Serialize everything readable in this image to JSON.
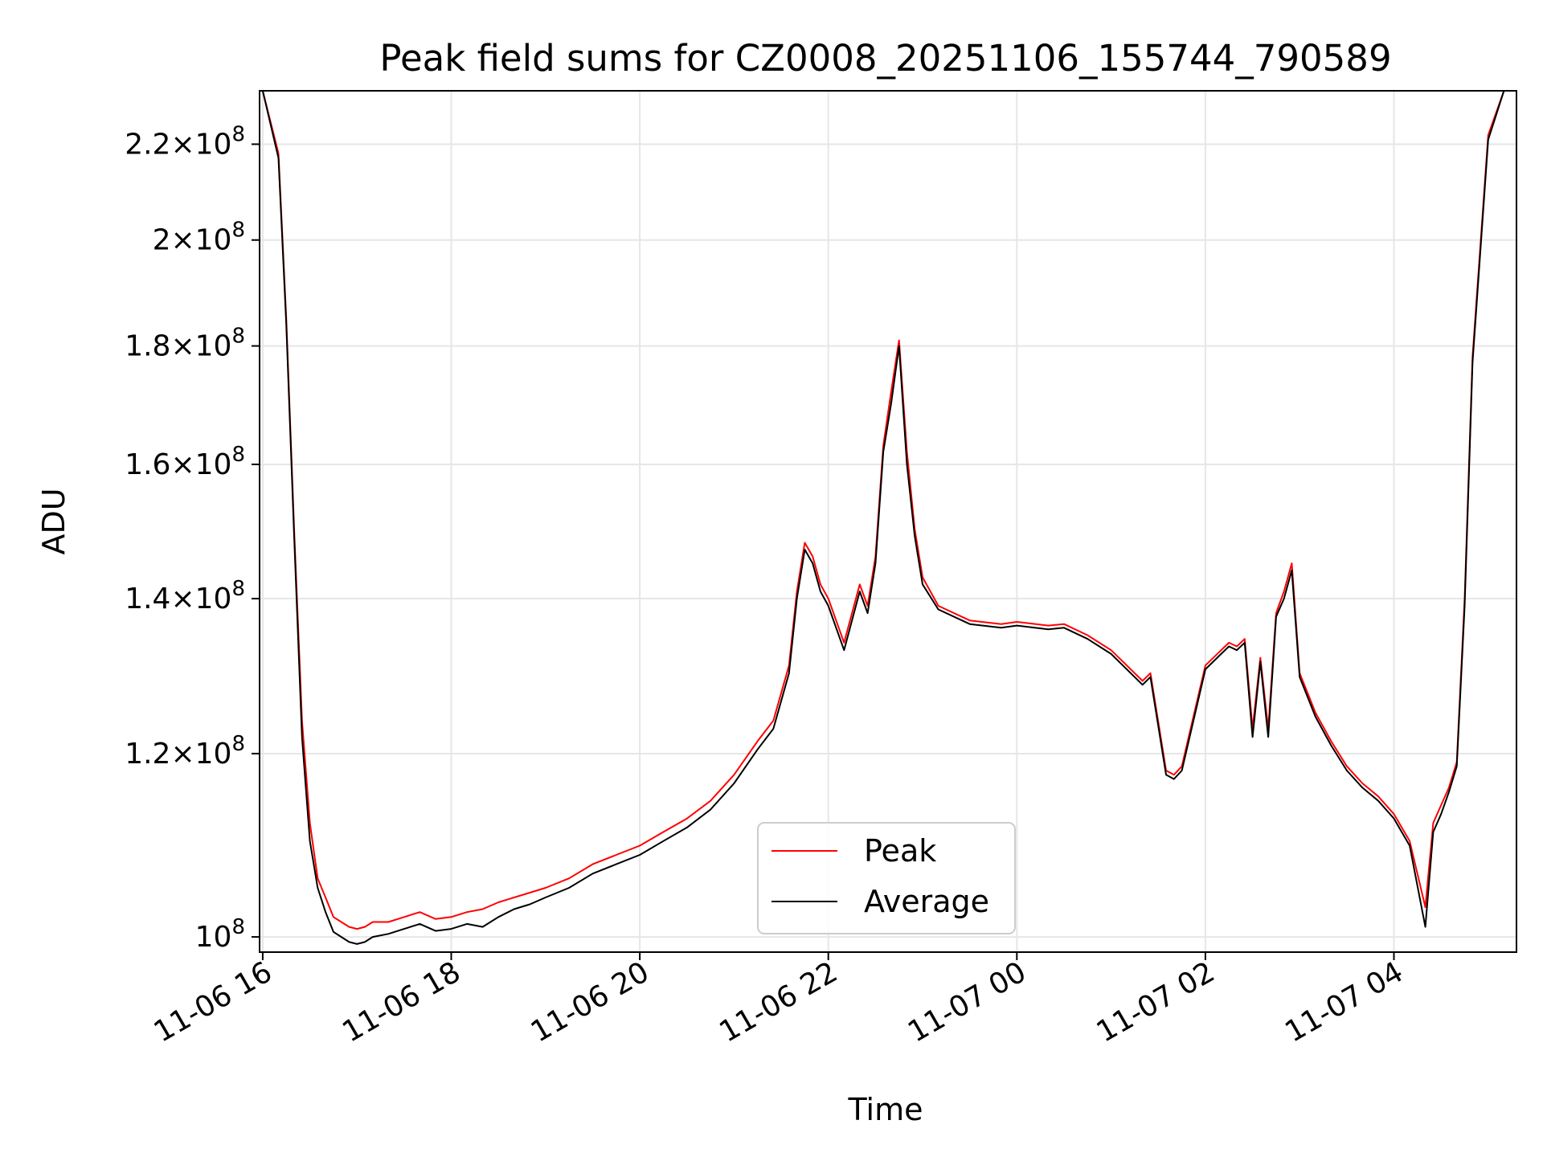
{
  "chart_data": {
    "type": "line",
    "title": "Peak field sums for CZ0008_20251106_155744_790589",
    "xlabel": "Time",
    "ylabel": "ADU",
    "yscale": "log",
    "grid": true,
    "legend_position": "bottom-center",
    "xlim": [
      "2025-11-06 15:58",
      "2025-11-07 05:18"
    ],
    "ylim": [
      98500000,
      232000000
    ],
    "x_ticks": [
      {
        "label": "11-06 16",
        "value": "2025-11-06 16:00"
      },
      {
        "label": "11-06 18",
        "value": "2025-11-06 18:00"
      },
      {
        "label": "11-06 20",
        "value": "2025-11-06 20:00"
      },
      {
        "label": "11-06 22",
        "value": "2025-11-06 22:00"
      },
      {
        "label": "11-07 00",
        "value": "2025-11-07 00:00"
      },
      {
        "label": "11-07 02",
        "value": "2025-11-07 02:00"
      },
      {
        "label": "11-07 04",
        "value": "2025-11-07 04:00"
      }
    ],
    "y_ticks": [
      {
        "value": 100000000,
        "mantissa": "",
        "exponent": "8"
      },
      {
        "value": 120000000,
        "mantissa": "1.2",
        "exponent": "8"
      },
      {
        "value": 140000000,
        "mantissa": "1.4",
        "exponent": "8"
      },
      {
        "value": 160000000,
        "mantissa": "1.6",
        "exponent": "8"
      },
      {
        "value": 180000000,
        "mantissa": "1.8",
        "exponent": "8"
      },
      {
        "value": 200000000,
        "mantissa": "2",
        "exponent": "8"
      },
      {
        "value": 220000000,
        "mantissa": "2.2",
        "exponent": "8"
      }
    ],
    "series": [
      {
        "name": "Peak",
        "color": "#ff0000",
        "x": [
          "2025-11-06 16:00",
          "2025-11-06 16:10",
          "2025-11-06 16:15",
          "2025-11-06 16:20",
          "2025-11-06 16:25",
          "2025-11-06 16:30",
          "2025-11-06 16:35",
          "2025-11-06 16:40",
          "2025-11-06 16:45",
          "2025-11-06 16:50",
          "2025-11-06 16:55",
          "2025-11-06 17:00",
          "2025-11-06 17:05",
          "2025-11-06 17:10",
          "2025-11-06 17:20",
          "2025-11-06 17:30",
          "2025-11-06 17:40",
          "2025-11-06 17:50",
          "2025-11-06 18:00",
          "2025-11-06 18:10",
          "2025-11-06 18:20",
          "2025-11-06 18:30",
          "2025-11-06 18:40",
          "2025-11-06 18:50",
          "2025-11-06 19:00",
          "2025-11-06 19:15",
          "2025-11-06 19:30",
          "2025-11-06 19:45",
          "2025-11-06 20:00",
          "2025-11-06 20:15",
          "2025-11-06 20:30",
          "2025-11-06 20:45",
          "2025-11-06 21:00",
          "2025-11-06 21:15",
          "2025-11-06 21:25",
          "2025-11-06 21:35",
          "2025-11-06 21:40",
          "2025-11-06 21:45",
          "2025-11-06 21:50",
          "2025-11-06 21:55",
          "2025-11-06 22:00",
          "2025-11-06 22:10",
          "2025-11-06 22:20",
          "2025-11-06 22:25",
          "2025-11-06 22:30",
          "2025-11-06 22:35",
          "2025-11-06 22:40",
          "2025-11-06 22:45",
          "2025-11-06 22:50",
          "2025-11-06 22:55",
          "2025-11-06 23:00",
          "2025-11-06 23:10",
          "2025-11-06 23:30",
          "2025-11-06 23:50",
          "2025-11-07 00:00",
          "2025-11-07 00:20",
          "2025-11-07 00:30",
          "2025-11-07 00:45",
          "2025-11-07 01:00",
          "2025-11-07 01:15",
          "2025-11-07 01:20",
          "2025-11-07 01:25",
          "2025-11-07 01:35",
          "2025-11-07 01:40",
          "2025-11-07 01:45",
          "2025-11-07 02:00",
          "2025-11-07 02:10",
          "2025-11-07 02:15",
          "2025-11-07 02:20",
          "2025-11-07 02:25",
          "2025-11-07 02:30",
          "2025-11-07 02:35",
          "2025-11-07 02:40",
          "2025-11-07 02:45",
          "2025-11-07 02:50",
          "2025-11-07 02:55",
          "2025-11-07 03:00",
          "2025-11-07 03:10",
          "2025-11-07 03:20",
          "2025-11-07 03:30",
          "2025-11-07 03:40",
          "2025-11-07 03:50",
          "2025-11-07 04:00",
          "2025-11-07 04:10",
          "2025-11-07 04:20",
          "2025-11-07 04:25",
          "2025-11-07 04:30",
          "2025-11-07 04:35",
          "2025-11-07 04:40",
          "2025-11-07 04:45",
          "2025-11-07 04:50",
          "2025-11-07 05:00",
          "2025-11-07 05:10",
          "2025-11-07 05:18"
        ],
        "y": [
          232000000,
          218000000,
          185000000,
          150000000,
          124000000,
          112000000,
          106000000,
          104000000,
          102000000,
          101500000,
          101000000,
          100800000,
          101000000,
          101500000,
          101500000,
          102000000,
          102500000,
          101800000,
          102000000,
          102500000,
          102800000,
          103500000,
          104000000,
          104500000,
          105000000,
          106000000,
          107500000,
          108500000,
          109500000,
          111000000,
          112500000,
          114500000,
          117500000,
          121500000,
          124000000,
          131000000,
          141000000,
          148000000,
          146000000,
          142000000,
          140000000,
          134000000,
          142000000,
          139000000,
          146000000,
          163000000,
          172000000,
          181000000,
          162000000,
          150000000,
          143000000,
          139000000,
          137000000,
          136500000,
          136800000,
          136300000,
          136500000,
          135000000,
          133000000,
          130000000,
          129000000,
          130000000,
          118000000,
          117500000,
          118500000,
          131000000,
          133000000,
          134000000,
          133500000,
          134500000,
          123000000,
          132000000,
          123000000,
          138000000,
          141000000,
          145000000,
          130000000,
          125000000,
          121500000,
          118500000,
          116500000,
          115000000,
          113000000,
          110000000,
          103000000,
          112000000,
          114000000,
          116000000,
          119000000,
          140000000,
          178000000,
          222000000,
          232000000,
          232000000
        ]
      },
      {
        "name": "Average",
        "color": "#000000",
        "x": [
          "2025-11-06 16:00",
          "2025-11-06 16:10",
          "2025-11-06 16:15",
          "2025-11-06 16:20",
          "2025-11-06 16:25",
          "2025-11-06 16:30",
          "2025-11-06 16:35",
          "2025-11-06 16:40",
          "2025-11-06 16:45",
          "2025-11-06 16:50",
          "2025-11-06 16:55",
          "2025-11-06 17:00",
          "2025-11-06 17:05",
          "2025-11-06 17:10",
          "2025-11-06 17:20",
          "2025-11-06 17:30",
          "2025-11-06 17:40",
          "2025-11-06 17:50",
          "2025-11-06 18:00",
          "2025-11-06 18:10",
          "2025-11-06 18:20",
          "2025-11-06 18:30",
          "2025-11-06 18:40",
          "2025-11-06 18:50",
          "2025-11-06 19:00",
          "2025-11-06 19:15",
          "2025-11-06 19:30",
          "2025-11-06 19:45",
          "2025-11-06 20:00",
          "2025-11-06 20:15",
          "2025-11-06 20:30",
          "2025-11-06 20:45",
          "2025-11-06 21:00",
          "2025-11-06 21:15",
          "2025-11-06 21:25",
          "2025-11-06 21:35",
          "2025-11-06 21:40",
          "2025-11-06 21:45",
          "2025-11-06 21:50",
          "2025-11-06 21:55",
          "2025-11-06 22:00",
          "2025-11-06 22:10",
          "2025-11-06 22:20",
          "2025-11-06 22:25",
          "2025-11-06 22:30",
          "2025-11-06 22:35",
          "2025-11-06 22:40",
          "2025-11-06 22:45",
          "2025-11-06 22:50",
          "2025-11-06 22:55",
          "2025-11-06 23:00",
          "2025-11-06 23:10",
          "2025-11-06 23:30",
          "2025-11-06 23:50",
          "2025-11-07 00:00",
          "2025-11-07 00:20",
          "2025-11-07 00:30",
          "2025-11-07 00:45",
          "2025-11-07 01:00",
          "2025-11-07 01:15",
          "2025-11-07 01:20",
          "2025-11-07 01:25",
          "2025-11-07 01:35",
          "2025-11-07 01:40",
          "2025-11-07 01:45",
          "2025-11-07 02:00",
          "2025-11-07 02:10",
          "2025-11-07 02:15",
          "2025-11-07 02:20",
          "2025-11-07 02:25",
          "2025-11-07 02:30",
          "2025-11-07 02:35",
          "2025-11-07 02:40",
          "2025-11-07 02:45",
          "2025-11-07 02:50",
          "2025-11-07 02:55",
          "2025-11-07 03:00",
          "2025-11-07 03:10",
          "2025-11-07 03:20",
          "2025-11-07 03:30",
          "2025-11-07 03:40",
          "2025-11-07 03:50",
          "2025-11-07 04:00",
          "2025-11-07 04:10",
          "2025-11-07 04:20",
          "2025-11-07 04:25",
          "2025-11-07 04:30",
          "2025-11-07 04:35",
          "2025-11-07 04:40",
          "2025-11-07 04:45",
          "2025-11-07 04:50",
          "2025-11-07 05:00",
          "2025-11-07 05:10",
          "2025-11-07 05:18"
        ],
        "y": [
          232000000,
          217000000,
          184000000,
          149000000,
          122000000,
          110000000,
          105000000,
          102500000,
          100500000,
          100000000,
          99500000,
          99300000,
          99500000,
          100000000,
          100300000,
          100800000,
          101300000,
          100600000,
          100800000,
          101300000,
          101000000,
          102000000,
          102800000,
          103300000,
          104000000,
          105000000,
          106500000,
          107500000,
          108500000,
          110000000,
          111500000,
          113500000,
          116500000,
          120500000,
          123000000,
          130000000,
          140000000,
          147000000,
          145000000,
          141000000,
          139000000,
          133000000,
          141000000,
          138000000,
          145000000,
          162000000,
          170000000,
          180000000,
          160000000,
          149000000,
          142000000,
          138500000,
          136500000,
          136000000,
          136300000,
          135800000,
          136000000,
          134500000,
          132500000,
          129500000,
          128500000,
          129500000,
          117500000,
          117000000,
          118000000,
          130500000,
          132500000,
          133500000,
          133000000,
          134000000,
          122000000,
          131500000,
          122000000,
          137500000,
          140000000,
          144000000,
          129500000,
          124500000,
          121000000,
          118000000,
          116000000,
          114500000,
          112500000,
          109500000,
          101000000,
          111000000,
          113000000,
          115500000,
          118500000,
          139000000,
          177000000,
          221000000,
          232000000,
          232000000
        ]
      }
    ]
  }
}
